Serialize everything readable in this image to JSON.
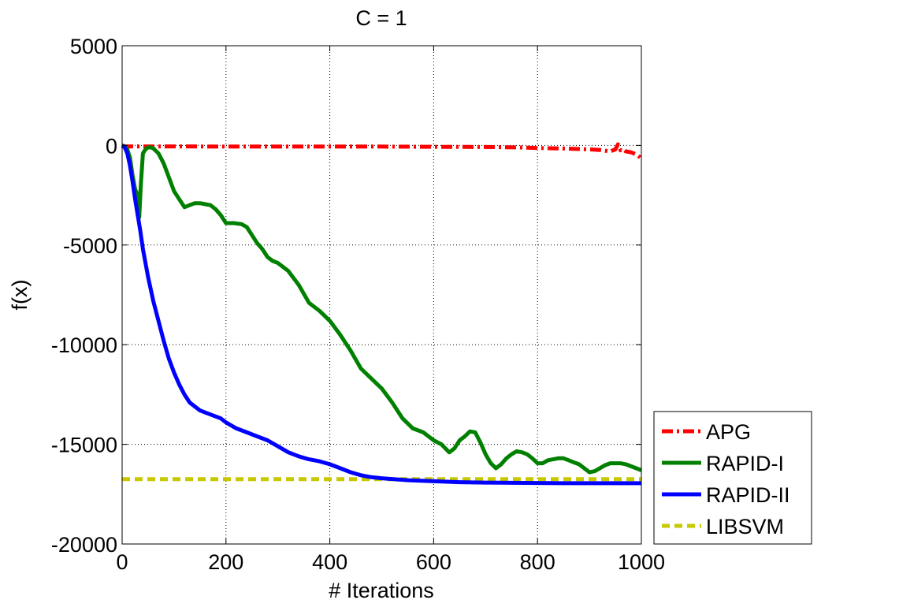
{
  "chart_data": {
    "type": "line",
    "title": "C = 1",
    "xlabel": "# Iterations",
    "ylabel": "f(x)",
    "xlim": [
      0,
      1000
    ],
    "ylim": [
      -20000,
      5000
    ],
    "grid": true,
    "legend_position": "bottom-right outside",
    "x_ticks": [
      0,
      200,
      400,
      600,
      800,
      1000
    ],
    "x_tick_labels": [
      "0",
      "200",
      "400",
      "600",
      "800",
      "1000"
    ],
    "y_ticks": [
      5000,
      0,
      -5000,
      -10000,
      -15000,
      -20000
    ],
    "y_tick_labels": [
      "5000",
      "0",
      "-5000",
      "-10000",
      "-15000",
      "-20000"
    ],
    "series": [
      {
        "name": "APG",
        "color": "#ff0000",
        "style": "dashdot",
        "x": [
          0,
          100,
          200,
          300,
          400,
          500,
          600,
          700,
          760,
          800,
          850,
          880,
          900,
          920,
          940,
          950,
          955,
          960,
          965,
          970,
          980,
          990,
          1000
        ],
        "y": [
          -50,
          -50,
          -60,
          -60,
          -60,
          -60,
          -70,
          -80,
          -100,
          -130,
          -160,
          -180,
          -200,
          -230,
          -300,
          -200,
          50,
          -250,
          -200,
          -300,
          -350,
          -450,
          -650
        ]
      },
      {
        "name": "RAPID-I",
        "color": "#008000",
        "style": "solid",
        "x": [
          0,
          5,
          10,
          15,
          20,
          25,
          30,
          33,
          36,
          40,
          45,
          50,
          55,
          60,
          70,
          80,
          90,
          100,
          110,
          120,
          130,
          140,
          150,
          160,
          170,
          180,
          190,
          200,
          215,
          230,
          240,
          250,
          260,
          270,
          280,
          290,
          300,
          320,
          340,
          360,
          380,
          400,
          420,
          440,
          460,
          480,
          500,
          520,
          540,
          560,
          580,
          600,
          615,
          630,
          640,
          650,
          660,
          670,
          680,
          690,
          700,
          710,
          720,
          730,
          740,
          750,
          760,
          770,
          780,
          790,
          800,
          810,
          820,
          830,
          840,
          850,
          860,
          870,
          880,
          890,
          900,
          910,
          920,
          930,
          940,
          950,
          960,
          970,
          980,
          990,
          1000
        ],
        "y": [
          0,
          -50,
          -200,
          -600,
          -1500,
          -2200,
          -2500,
          -3600,
          -2000,
          -400,
          -200,
          -100,
          -100,
          -150,
          -400,
          -900,
          -1600,
          -2300,
          -2700,
          -3100,
          -3000,
          -2900,
          -2900,
          -2950,
          -3000,
          -3200,
          -3500,
          -3900,
          -3900,
          -3950,
          -4100,
          -4500,
          -4900,
          -5200,
          -5600,
          -5800,
          -5900,
          -6300,
          -7000,
          -7900,
          -8300,
          -8800,
          -9500,
          -10300,
          -11200,
          -11700,
          -12200,
          -12900,
          -13700,
          -14200,
          -14400,
          -14800,
          -15000,
          -15400,
          -15200,
          -14800,
          -14600,
          -14350,
          -14400,
          -14900,
          -15500,
          -15950,
          -16200,
          -16000,
          -15700,
          -15500,
          -15350,
          -15400,
          -15500,
          -15700,
          -15950,
          -15950,
          -15800,
          -15750,
          -15700,
          -15700,
          -15800,
          -15900,
          -16000,
          -16200,
          -16400,
          -16350,
          -16200,
          -16050,
          -15950,
          -15950,
          -15950,
          -16000,
          -16100,
          -16200,
          -16300
        ]
      },
      {
        "name": "RAPID-II",
        "color": "#0000ff",
        "style": "solid",
        "x": [
          0,
          5,
          10,
          15,
          20,
          25,
          30,
          35,
          40,
          50,
          60,
          70,
          80,
          90,
          100,
          110,
          120,
          130,
          140,
          150,
          160,
          170,
          180,
          190,
          200,
          220,
          240,
          260,
          280,
          300,
          320,
          340,
          360,
          380,
          400,
          420,
          440,
          460,
          480,
          500,
          550,
          600,
          650,
          700,
          750,
          800,
          850,
          900,
          950,
          1000
        ],
        "y": [
          0,
          -100,
          -400,
          -1000,
          -1800,
          -2700,
          -3500,
          -4300,
          -5200,
          -6600,
          -7800,
          -8800,
          -9800,
          -10700,
          -11400,
          -12000,
          -12500,
          -12900,
          -13100,
          -13300,
          -13400,
          -13500,
          -13600,
          -13700,
          -13900,
          -14200,
          -14400,
          -14600,
          -14800,
          -15100,
          -15400,
          -15600,
          -15750,
          -15850,
          -16000,
          -16200,
          -16400,
          -16550,
          -16650,
          -16700,
          -16800,
          -16850,
          -16900,
          -16920,
          -16930,
          -16940,
          -16950,
          -16950,
          -16950,
          -16950
        ]
      },
      {
        "name": "LIBSVM",
        "color": "#c8c800",
        "style": "dashed",
        "x": [
          0,
          1000
        ],
        "y": [
          -16750,
          -16750
        ]
      }
    ]
  }
}
